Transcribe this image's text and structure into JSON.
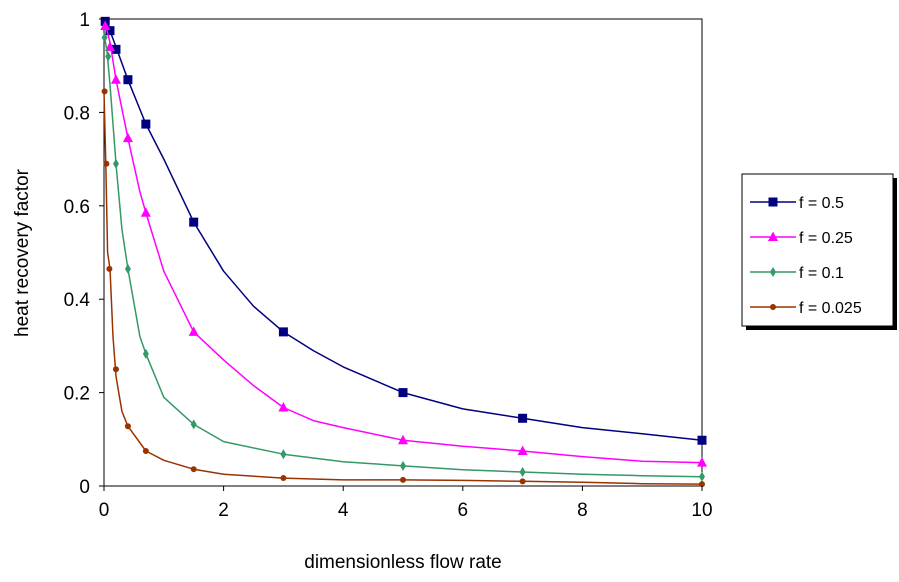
{
  "chart_data": {
    "type": "line",
    "title": "",
    "xlabel": "dimensionless flow rate",
    "ylabel": "heat recovery factor",
    "xlim": [
      0,
      10
    ],
    "ylim": [
      0,
      1
    ],
    "xticks": [
      "0",
      "2",
      "4",
      "6",
      "8",
      "10"
    ],
    "yticks": [
      "0",
      "0.2",
      "0.4",
      "0.6",
      "0.8",
      "1"
    ],
    "grid": false,
    "legend_position": "right",
    "series": [
      {
        "name": "f = 0.5",
        "color": "#000080",
        "marker": "square",
        "curve": [
          [
            0,
            1.0
          ],
          [
            0.05,
            0.99
          ],
          [
            0.1,
            0.975
          ],
          [
            0.2,
            0.94
          ],
          [
            0.4,
            0.87
          ],
          [
            0.7,
            0.775
          ],
          [
            1.0,
            0.7
          ],
          [
            1.5,
            0.565
          ],
          [
            2.0,
            0.46
          ],
          [
            2.5,
            0.385
          ],
          [
            3.0,
            0.33
          ],
          [
            3.5,
            0.29
          ],
          [
            4.0,
            0.255
          ],
          [
            5.0,
            0.2
          ],
          [
            6.0,
            0.165
          ],
          [
            7.0,
            0.145
          ],
          [
            8.0,
            0.125
          ],
          [
            9.0,
            0.112
          ],
          [
            10.0,
            0.098
          ]
        ],
        "markers": [
          [
            0.02,
            0.995
          ],
          [
            0.1,
            0.975
          ],
          [
            0.2,
            0.935
          ],
          [
            0.4,
            0.87
          ],
          [
            0.7,
            0.775
          ],
          [
            1.5,
            0.565
          ],
          [
            3.0,
            0.33
          ],
          [
            5.0,
            0.2
          ],
          [
            7.0,
            0.145
          ],
          [
            10.0,
            0.098
          ]
        ]
      },
      {
        "name": "f = 0.25",
        "color": "#FF00FF",
        "marker": "triangle",
        "curve": [
          [
            0,
            0.99
          ],
          [
            0.05,
            0.975
          ],
          [
            0.1,
            0.95
          ],
          [
            0.2,
            0.87
          ],
          [
            0.4,
            0.745
          ],
          [
            0.6,
            0.63
          ],
          [
            0.7,
            0.585
          ],
          [
            1.0,
            0.46
          ],
          [
            1.5,
            0.33
          ],
          [
            2.0,
            0.27
          ],
          [
            2.5,
            0.215
          ],
          [
            3.0,
            0.168
          ],
          [
            3.5,
            0.14
          ],
          [
            4.0,
            0.125
          ],
          [
            5.0,
            0.098
          ],
          [
            6.0,
            0.085
          ],
          [
            7.0,
            0.075
          ],
          [
            8.0,
            0.063
          ],
          [
            9.0,
            0.053
          ],
          [
            10.0,
            0.05
          ]
        ],
        "markers": [
          [
            0.02,
            0.985
          ],
          [
            0.1,
            0.94
          ],
          [
            0.2,
            0.87
          ],
          [
            0.4,
            0.745
          ],
          [
            0.7,
            0.585
          ],
          [
            1.5,
            0.33
          ],
          [
            3.0,
            0.168
          ],
          [
            5.0,
            0.098
          ],
          [
            7.0,
            0.075
          ],
          [
            10.0,
            0.05
          ]
        ]
      },
      {
        "name": "f = 0.1",
        "color": "#339966",
        "marker": "dash",
        "curve": [
          [
            0,
            0.97
          ],
          [
            0.05,
            0.93
          ],
          [
            0.1,
            0.86
          ],
          [
            0.2,
            0.69
          ],
          [
            0.3,
            0.55
          ],
          [
            0.4,
            0.465
          ],
          [
            0.6,
            0.32
          ],
          [
            0.7,
            0.283
          ],
          [
            1.0,
            0.19
          ],
          [
            1.5,
            0.132
          ],
          [
            2.0,
            0.095
          ],
          [
            3.0,
            0.068
          ],
          [
            4.0,
            0.052
          ],
          [
            5.0,
            0.043
          ],
          [
            6.0,
            0.035
          ],
          [
            7.0,
            0.03
          ],
          [
            8.0,
            0.025
          ],
          [
            9.0,
            0.022
          ],
          [
            10.0,
            0.02
          ]
        ],
        "markers": [
          [
            0.01,
            0.96
          ],
          [
            0.07,
            0.92
          ],
          [
            0.2,
            0.69
          ],
          [
            0.4,
            0.465
          ],
          [
            0.7,
            0.283
          ],
          [
            1.5,
            0.132
          ],
          [
            3.0,
            0.068
          ],
          [
            5.0,
            0.043
          ],
          [
            7.0,
            0.03
          ],
          [
            10.0,
            0.02
          ]
        ]
      },
      {
        "name": "f = 0.025",
        "color": "#993300",
        "marker": "circle",
        "curve": [
          [
            0,
            0.845
          ],
          [
            0.03,
            0.69
          ],
          [
            0.06,
            0.5
          ],
          [
            0.1,
            0.465
          ],
          [
            0.15,
            0.32
          ],
          [
            0.2,
            0.235
          ],
          [
            0.3,
            0.16
          ],
          [
            0.4,
            0.128
          ],
          [
            0.7,
            0.075
          ],
          [
            1.0,
            0.055
          ],
          [
            1.5,
            0.036
          ],
          [
            2.0,
            0.025
          ],
          [
            3.0,
            0.017
          ],
          [
            4.0,
            0.013
          ],
          [
            5.0,
            0.013
          ],
          [
            6.0,
            0.012
          ],
          [
            7.0,
            0.01
          ],
          [
            8.0,
            0.008
          ],
          [
            9.0,
            0.005
          ],
          [
            10.0,
            0.004
          ]
        ],
        "markers": [
          [
            0.01,
            0.845
          ],
          [
            0.04,
            0.69
          ],
          [
            0.09,
            0.465
          ],
          [
            0.2,
            0.25
          ],
          [
            0.4,
            0.128
          ],
          [
            0.7,
            0.075
          ],
          [
            1.5,
            0.036
          ],
          [
            3.0,
            0.017
          ],
          [
            5.0,
            0.013
          ],
          [
            7.0,
            0.01
          ],
          [
            10.0,
            0.004
          ]
        ]
      }
    ]
  }
}
